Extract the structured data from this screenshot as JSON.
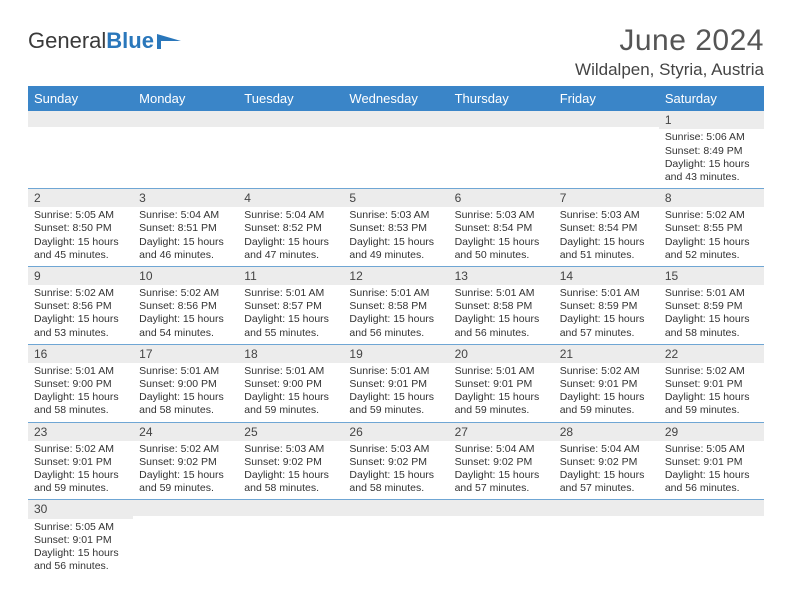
{
  "brand": {
    "part1": "General",
    "part2": "Blue"
  },
  "header": {
    "month_title": "June 2024",
    "location": "Wildalpen, Styria, Austria"
  },
  "colors": {
    "header_bg": "#3a85c8",
    "header_text": "#ffffff",
    "daynum_bg": "#ececec",
    "cell_border": "#6fa6d4",
    "brand_blue": "#2a77bb",
    "text": "#333333"
  },
  "daynames": [
    "Sunday",
    "Monday",
    "Tuesday",
    "Wednesday",
    "Thursday",
    "Friday",
    "Saturday"
  ],
  "weeks": [
    [
      {
        "n": "",
        "sr": "",
        "ss": "",
        "dl": ""
      },
      {
        "n": "",
        "sr": "",
        "ss": "",
        "dl": ""
      },
      {
        "n": "",
        "sr": "",
        "ss": "",
        "dl": ""
      },
      {
        "n": "",
        "sr": "",
        "ss": "",
        "dl": ""
      },
      {
        "n": "",
        "sr": "",
        "ss": "",
        "dl": ""
      },
      {
        "n": "",
        "sr": "",
        "ss": "",
        "dl": ""
      },
      {
        "n": "1",
        "sr": "Sunrise: 5:06 AM",
        "ss": "Sunset: 8:49 PM",
        "dl": "Daylight: 15 hours and 43 minutes."
      }
    ],
    [
      {
        "n": "2",
        "sr": "Sunrise: 5:05 AM",
        "ss": "Sunset: 8:50 PM",
        "dl": "Daylight: 15 hours and 45 minutes."
      },
      {
        "n": "3",
        "sr": "Sunrise: 5:04 AM",
        "ss": "Sunset: 8:51 PM",
        "dl": "Daylight: 15 hours and 46 minutes."
      },
      {
        "n": "4",
        "sr": "Sunrise: 5:04 AM",
        "ss": "Sunset: 8:52 PM",
        "dl": "Daylight: 15 hours and 47 minutes."
      },
      {
        "n": "5",
        "sr": "Sunrise: 5:03 AM",
        "ss": "Sunset: 8:53 PM",
        "dl": "Daylight: 15 hours and 49 minutes."
      },
      {
        "n": "6",
        "sr": "Sunrise: 5:03 AM",
        "ss": "Sunset: 8:54 PM",
        "dl": "Daylight: 15 hours and 50 minutes."
      },
      {
        "n": "7",
        "sr": "Sunrise: 5:03 AM",
        "ss": "Sunset: 8:54 PM",
        "dl": "Daylight: 15 hours and 51 minutes."
      },
      {
        "n": "8",
        "sr": "Sunrise: 5:02 AM",
        "ss": "Sunset: 8:55 PM",
        "dl": "Daylight: 15 hours and 52 minutes."
      }
    ],
    [
      {
        "n": "9",
        "sr": "Sunrise: 5:02 AM",
        "ss": "Sunset: 8:56 PM",
        "dl": "Daylight: 15 hours and 53 minutes."
      },
      {
        "n": "10",
        "sr": "Sunrise: 5:02 AM",
        "ss": "Sunset: 8:56 PM",
        "dl": "Daylight: 15 hours and 54 minutes."
      },
      {
        "n": "11",
        "sr": "Sunrise: 5:01 AM",
        "ss": "Sunset: 8:57 PM",
        "dl": "Daylight: 15 hours and 55 minutes."
      },
      {
        "n": "12",
        "sr": "Sunrise: 5:01 AM",
        "ss": "Sunset: 8:58 PM",
        "dl": "Daylight: 15 hours and 56 minutes."
      },
      {
        "n": "13",
        "sr": "Sunrise: 5:01 AM",
        "ss": "Sunset: 8:58 PM",
        "dl": "Daylight: 15 hours and 56 minutes."
      },
      {
        "n": "14",
        "sr": "Sunrise: 5:01 AM",
        "ss": "Sunset: 8:59 PM",
        "dl": "Daylight: 15 hours and 57 minutes."
      },
      {
        "n": "15",
        "sr": "Sunrise: 5:01 AM",
        "ss": "Sunset: 8:59 PM",
        "dl": "Daylight: 15 hours and 58 minutes."
      }
    ],
    [
      {
        "n": "16",
        "sr": "Sunrise: 5:01 AM",
        "ss": "Sunset: 9:00 PM",
        "dl": "Daylight: 15 hours and 58 minutes."
      },
      {
        "n": "17",
        "sr": "Sunrise: 5:01 AM",
        "ss": "Sunset: 9:00 PM",
        "dl": "Daylight: 15 hours and 58 minutes."
      },
      {
        "n": "18",
        "sr": "Sunrise: 5:01 AM",
        "ss": "Sunset: 9:00 PM",
        "dl": "Daylight: 15 hours and 59 minutes."
      },
      {
        "n": "19",
        "sr": "Sunrise: 5:01 AM",
        "ss": "Sunset: 9:01 PM",
        "dl": "Daylight: 15 hours and 59 minutes."
      },
      {
        "n": "20",
        "sr": "Sunrise: 5:01 AM",
        "ss": "Sunset: 9:01 PM",
        "dl": "Daylight: 15 hours and 59 minutes."
      },
      {
        "n": "21",
        "sr": "Sunrise: 5:02 AM",
        "ss": "Sunset: 9:01 PM",
        "dl": "Daylight: 15 hours and 59 minutes."
      },
      {
        "n": "22",
        "sr": "Sunrise: 5:02 AM",
        "ss": "Sunset: 9:01 PM",
        "dl": "Daylight: 15 hours and 59 minutes."
      }
    ],
    [
      {
        "n": "23",
        "sr": "Sunrise: 5:02 AM",
        "ss": "Sunset: 9:01 PM",
        "dl": "Daylight: 15 hours and 59 minutes."
      },
      {
        "n": "24",
        "sr": "Sunrise: 5:02 AM",
        "ss": "Sunset: 9:02 PM",
        "dl": "Daylight: 15 hours and 59 minutes."
      },
      {
        "n": "25",
        "sr": "Sunrise: 5:03 AM",
        "ss": "Sunset: 9:02 PM",
        "dl": "Daylight: 15 hours and 58 minutes."
      },
      {
        "n": "26",
        "sr": "Sunrise: 5:03 AM",
        "ss": "Sunset: 9:02 PM",
        "dl": "Daylight: 15 hours and 58 minutes."
      },
      {
        "n": "27",
        "sr": "Sunrise: 5:04 AM",
        "ss": "Sunset: 9:02 PM",
        "dl": "Daylight: 15 hours and 57 minutes."
      },
      {
        "n": "28",
        "sr": "Sunrise: 5:04 AM",
        "ss": "Sunset: 9:02 PM",
        "dl": "Daylight: 15 hours and 57 minutes."
      },
      {
        "n": "29",
        "sr": "Sunrise: 5:05 AM",
        "ss": "Sunset: 9:01 PM",
        "dl": "Daylight: 15 hours and 56 minutes."
      }
    ],
    [
      {
        "n": "30",
        "sr": "Sunrise: 5:05 AM",
        "ss": "Sunset: 9:01 PM",
        "dl": "Daylight: 15 hours and 56 minutes."
      },
      {
        "n": "",
        "sr": "",
        "ss": "",
        "dl": ""
      },
      {
        "n": "",
        "sr": "",
        "ss": "",
        "dl": ""
      },
      {
        "n": "",
        "sr": "",
        "ss": "",
        "dl": ""
      },
      {
        "n": "",
        "sr": "",
        "ss": "",
        "dl": ""
      },
      {
        "n": "",
        "sr": "",
        "ss": "",
        "dl": ""
      },
      {
        "n": "",
        "sr": "",
        "ss": "",
        "dl": ""
      }
    ]
  ]
}
